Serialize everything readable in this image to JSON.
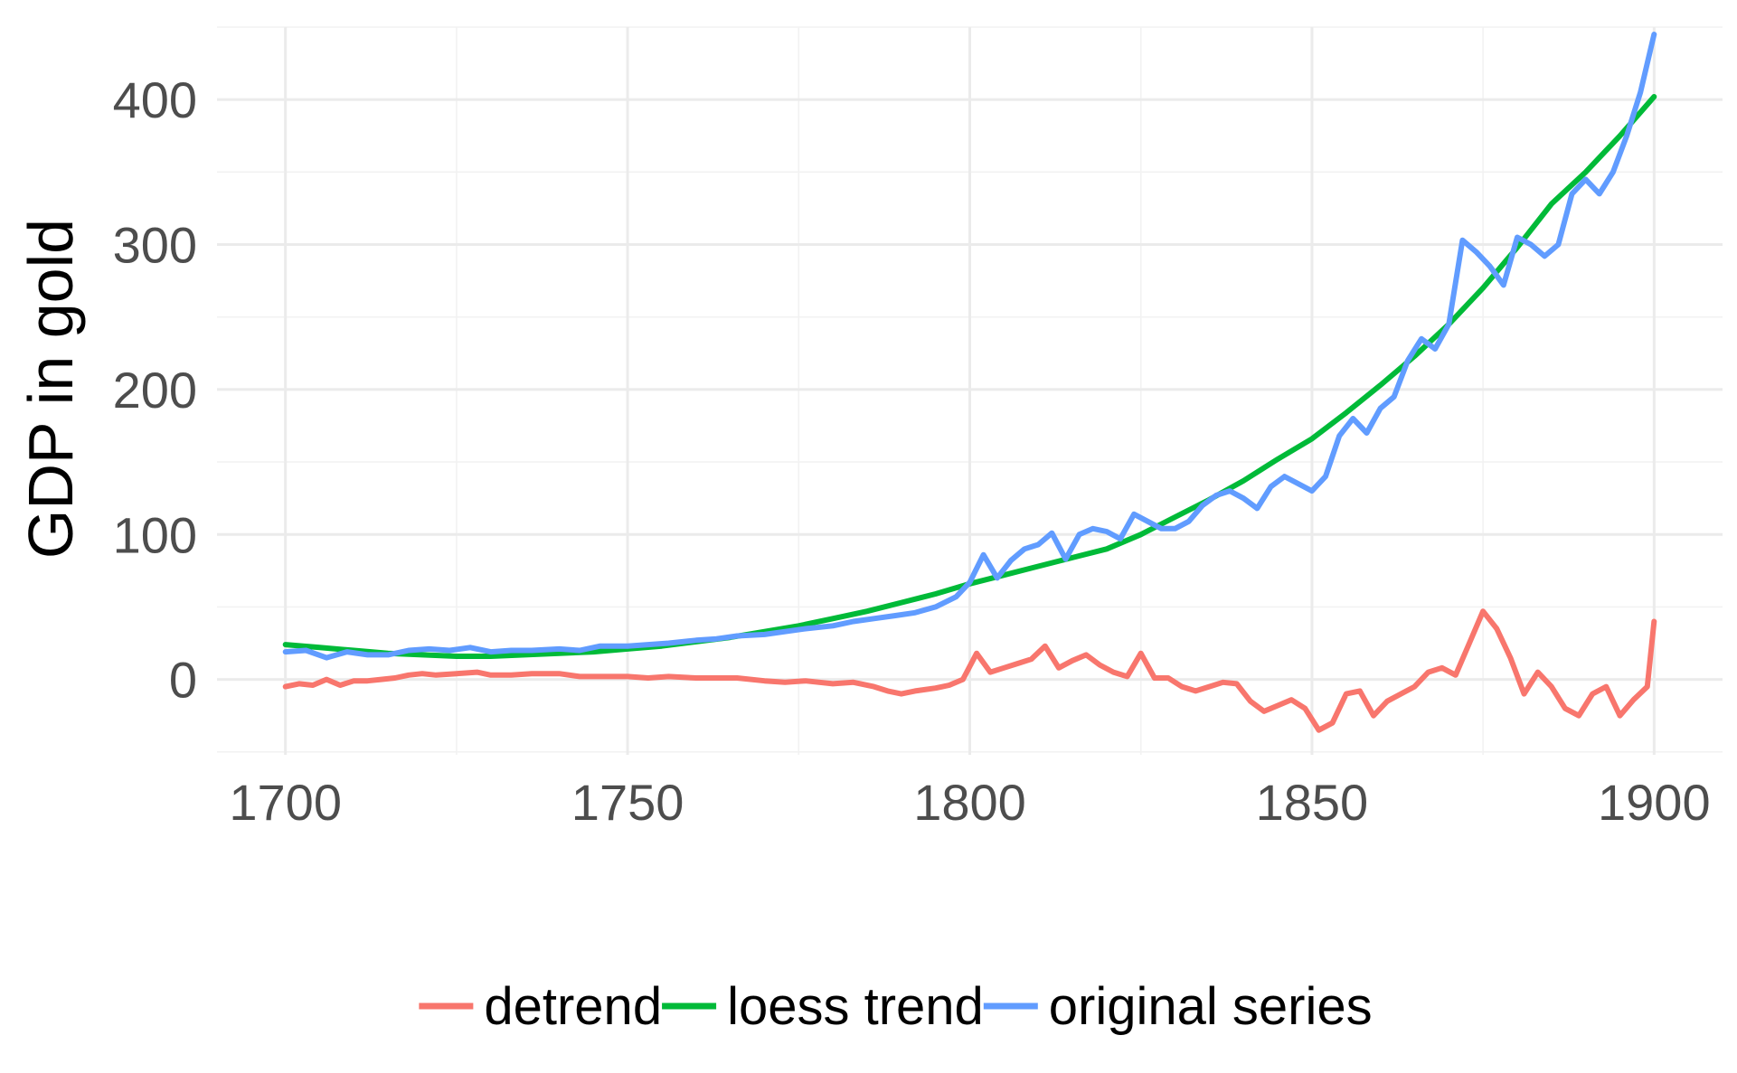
{
  "chart_data": {
    "type": "line",
    "title": "",
    "xlabel": "",
    "ylabel": "GDP in gold",
    "xlim": [
      1690,
      1910
    ],
    "ylim": [
      -52,
      450
    ],
    "x_ticks": [
      1700,
      1750,
      1800,
      1850,
      1900
    ],
    "y_ticks": [
      0,
      100,
      200,
      300,
      400
    ],
    "grid": true,
    "legend_position": "bottom",
    "series": [
      {
        "name": "detrend",
        "color": "#F8766D",
        "x": [
          1700,
          1702,
          1704,
          1706,
          1708,
          1710,
          1712,
          1714,
          1716,
          1718,
          1720,
          1722,
          1725,
          1728,
          1730,
          1733,
          1736,
          1740,
          1743,
          1746,
          1750,
          1753,
          1756,
          1760,
          1763,
          1766,
          1770,
          1773,
          1776,
          1780,
          1783,
          1786,
          1788,
          1790,
          1792,
          1795,
          1797,
          1799,
          1801,
          1803,
          1805,
          1807,
          1809,
          1811,
          1813,
          1815,
          1817,
          1819,
          1821,
          1823,
          1825,
          1827,
          1829,
          1831,
          1833,
          1835,
          1837,
          1839,
          1841,
          1843,
          1845,
          1847,
          1849,
          1851,
          1853,
          1855,
          1857,
          1859,
          1861,
          1863,
          1865,
          1867,
          1869,
          1871,
          1873,
          1875,
          1877,
          1879,
          1881,
          1883,
          1885,
          1887,
          1889,
          1891,
          1893,
          1895,
          1897,
          1899,
          1900
        ],
        "y": [
          -5,
          -3,
          -4,
          0,
          -4,
          -1,
          -1,
          0,
          1,
          3,
          4,
          3,
          4,
          5,
          3,
          3,
          4,
          4,
          2,
          2,
          2,
          1,
          2,
          1,
          1,
          1,
          -1,
          -2,
          -1,
          -3,
          -2,
          -5,
          -8,
          -10,
          -8,
          -6,
          -4,
          0,
          18,
          5,
          8,
          11,
          14,
          23,
          8,
          13,
          17,
          10,
          5,
          2,
          18,
          1,
          1,
          -5,
          -8,
          -5,
          -2,
          -3,
          -15,
          -22,
          -18,
          -14,
          -20,
          -35,
          -30,
          -10,
          -8,
          -25,
          -15,
          -10,
          -5,
          5,
          8,
          3,
          25,
          47,
          35,
          15,
          -10,
          5,
          -5,
          -20,
          -25,
          -10,
          -5,
          -25,
          -14,
          -5,
          40
        ]
      },
      {
        "name": "loess trend",
        "color": "#00BA38",
        "x": [
          1700,
          1705,
          1710,
          1715,
          1720,
          1725,
          1730,
          1735,
          1740,
          1745,
          1750,
          1755,
          1760,
          1765,
          1770,
          1775,
          1780,
          1785,
          1790,
          1795,
          1800,
          1805,
          1810,
          1815,
          1820,
          1825,
          1830,
          1835,
          1840,
          1845,
          1850,
          1855,
          1860,
          1865,
          1870,
          1875,
          1880,
          1885,
          1890,
          1895,
          1900
        ],
        "y": [
          24,
          22,
          20,
          18,
          17,
          16,
          16,
          17,
          18,
          19,
          21,
          23,
          26,
          29,
          33,
          37,
          42,
          47,
          53,
          59,
          66,
          72,
          78,
          84,
          90,
          100,
          112,
          124,
          137,
          152,
          166,
          184,
          203,
          223,
          245,
          270,
          298,
          328,
          350,
          375,
          402
        ]
      },
      {
        "name": "original series",
        "color": "#619CFF",
        "x": [
          1700,
          1703,
          1706,
          1709,
          1712,
          1715,
          1718,
          1721,
          1724,
          1727,
          1730,
          1733,
          1736,
          1740,
          1743,
          1746,
          1750,
          1753,
          1756,
          1760,
          1763,
          1766,
          1770,
          1773,
          1776,
          1780,
          1783,
          1786,
          1789,
          1792,
          1795,
          1798,
          1800,
          1802,
          1804,
          1806,
          1808,
          1810,
          1812,
          1814,
          1816,
          1818,
          1820,
          1822,
          1824,
          1826,
          1828,
          1830,
          1832,
          1834,
          1836,
          1838,
          1840,
          1842,
          1844,
          1846,
          1848,
          1850,
          1852,
          1854,
          1856,
          1858,
          1860,
          1862,
          1864,
          1866,
          1868,
          1870,
          1872,
          1874,
          1876,
          1878,
          1880,
          1882,
          1884,
          1886,
          1888,
          1890,
          1892,
          1894,
          1896,
          1898,
          1900
        ],
        "y": [
          19,
          20,
          15,
          19,
          17,
          17,
          20,
          21,
          20,
          22,
          19,
          20,
          20,
          21,
          20,
          23,
          23,
          24,
          25,
          27,
          28,
          30,
          31,
          33,
          35,
          37,
          40,
          42,
          44,
          46,
          50,
          57,
          67,
          86,
          70,
          82,
          90,
          93,
          101,
          83,
          100,
          104,
          102,
          97,
          114,
          109,
          104,
          104,
          109,
          120,
          127,
          130,
          125,
          118,
          133,
          140,
          135,
          130,
          140,
          168,
          180,
          170,
          187,
          195,
          220,
          235,
          228,
          245,
          303,
          295,
          285,
          272,
          305,
          300,
          292,
          300,
          335,
          345,
          335,
          350,
          375,
          405,
          445
        ]
      }
    ]
  }
}
